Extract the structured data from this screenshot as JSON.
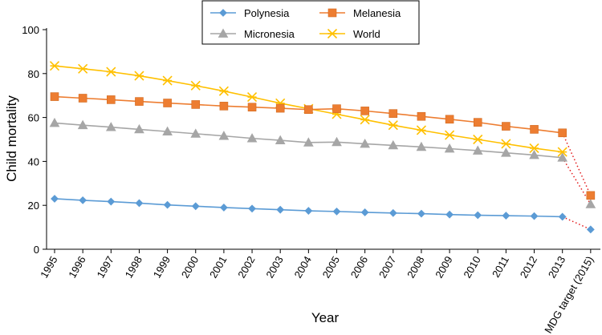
{
  "chart_data": {
    "type": "line",
    "xlabel": "Year",
    "ylabel": "Child mortality",
    "ylim": [
      0,
      100
    ],
    "yticks": [
      0,
      20,
      40,
      60,
      80,
      100
    ],
    "categories": [
      "1995",
      "1996",
      "1997",
      "1998",
      "1999",
      "2000",
      "2001",
      "2002",
      "2003",
      "2004",
      "2005",
      "2006",
      "2007",
      "2008",
      "2009",
      "2010",
      "2011",
      "2012",
      "2013"
    ],
    "target_label": "MDG target (2015)",
    "grid": false,
    "legend_position": "top-center",
    "series": [
      {
        "name": "Polynesia",
        "color": "#5b9bd5",
        "marker": "diamond",
        "values": [
          23,
          22.3,
          21.7,
          21,
          20.2,
          19.6,
          19,
          18.5,
          18,
          17.5,
          17.2,
          16.8,
          16.5,
          16.2,
          15.8,
          15.5,
          15.3,
          15.1,
          14.8
        ],
        "target": 9
      },
      {
        "name": "Melanesia",
        "color": "#ed7d31",
        "marker": "square",
        "values": [
          69.5,
          68.8,
          68.1,
          67.3,
          66.6,
          65.9,
          65.2,
          64.7,
          64.2,
          63.6,
          64,
          63,
          61.8,
          60.5,
          59.2,
          57.8,
          56,
          54.6,
          53
        ],
        "target": 24.5
      },
      {
        "name": "Micronesia",
        "color": "#a6a6a6",
        "marker": "triangle",
        "values": [
          57.5,
          56.5,
          55.6,
          54.6,
          53.6,
          52.6,
          51.6,
          50.5,
          49.6,
          48.6,
          48.8,
          48,
          47.3,
          46.6,
          45.8,
          44.9,
          43.9,
          42.9,
          41.7
        ],
        "target": 20.5
      },
      {
        "name": "World",
        "color": "#ffc000",
        "marker": "star",
        "values": [
          83.5,
          82.2,
          80.8,
          79,
          76.8,
          74.5,
          72,
          69.3,
          66.5,
          64,
          61.5,
          59,
          56.5,
          54.2,
          52,
          50,
          48,
          46,
          44.3
        ],
        "target": null
      }
    ]
  }
}
